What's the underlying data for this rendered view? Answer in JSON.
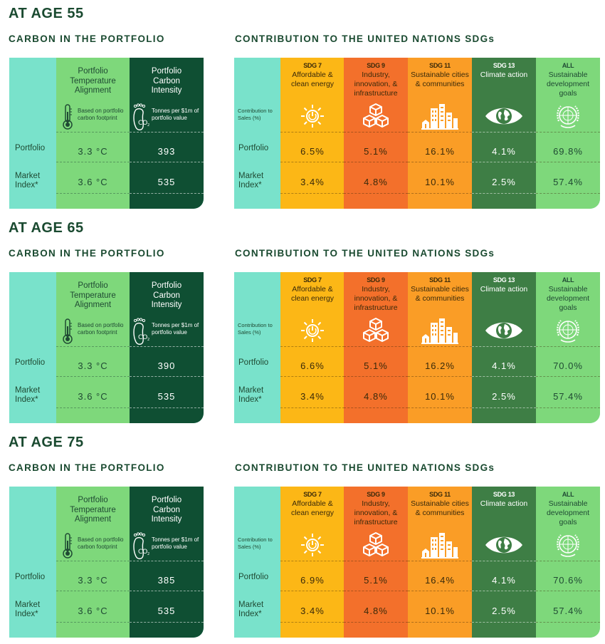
{
  "sections": [
    {
      "age_title": "AT AGE 55",
      "carbon": {
        "title": "CARBON IN THE PORTFOLIO",
        "temp_header": "Portfolio Temperature Alignment",
        "temp_sub": "Based on portfolio carbon footprint",
        "int_header": "Portfolio Carbon Intensity",
        "int_sub": "Tonnes per $1m of portfolio value",
        "portfolio_label": "Portfolio",
        "market_label": "Market Index*",
        "portfolio_temp": "3.3 °C",
        "portfolio_int": "393",
        "market_temp": "3.6 °C",
        "market_int": "535"
      },
      "sdg": {
        "title": "CONTRIBUTION TO THE UNITED NATIONS SDGs",
        "contrib_label": "Contribution to Sales (%)",
        "portfolio_label": "Portfolio",
        "market_label": "Market Index*",
        "columns": [
          {
            "code": "SDG 7",
            "name": "Affordable & clean energy",
            "portfolio": "6.5%",
            "market": "3.4%"
          },
          {
            "code": "SDG 9",
            "name": "Industry, innovation, & infrastructure",
            "portfolio": "5.1%",
            "market": "4.8%"
          },
          {
            "code": "SDG 11",
            "name": "Sustainable cities & communities",
            "portfolio": "16.1%",
            "market": "10.1%"
          },
          {
            "code": "SDG 13",
            "name": "Climate action",
            "portfolio": "4.1%",
            "market": "2.5%"
          },
          {
            "code": "ALL",
            "name": "Sustainable development goals",
            "portfolio": "69.8%",
            "market": "57.4%"
          }
        ]
      }
    },
    {
      "age_title": "AT AGE 65",
      "carbon": {
        "title": "CARBON IN THE PORTFOLIO",
        "temp_header": "Portfolio Temperature Alignment",
        "temp_sub": "Based on portfolio carbon footprint",
        "int_header": "Portfolio Carbon Intensity",
        "int_sub": "Tonnes per $1m of portfolio value",
        "portfolio_label": "Portfolio",
        "market_label": "Market Index*",
        "portfolio_temp": "3.3 °C",
        "portfolio_int": "390",
        "market_temp": "3.6 °C",
        "market_int": "535"
      },
      "sdg": {
        "title": "CONTRIBUTION TO THE UNITED NATIONS SDGs",
        "contrib_label": "Contribution to Sales (%)",
        "portfolio_label": "Portfolio",
        "market_label": "Market Index*",
        "columns": [
          {
            "code": "SDG 7",
            "name": "Affordable & clean energy",
            "portfolio": "6.6%",
            "market": "3.4%"
          },
          {
            "code": "SDG 9",
            "name": "Industry, innovation, & infrastructure",
            "portfolio": "5.1%",
            "market": "4.8%"
          },
          {
            "code": "SDG 11",
            "name": "Sustainable cities & communities",
            "portfolio": "16.2%",
            "market": "10.1%"
          },
          {
            "code": "SDG 13",
            "name": "Climate action",
            "portfolio": "4.1%",
            "market": "2.5%"
          },
          {
            "code": "ALL",
            "name": "Sustainable development goals",
            "portfolio": "70.0%",
            "market": "57.4%"
          }
        ]
      }
    },
    {
      "age_title": "AT AGE 75",
      "carbon": {
        "title": "CARBON IN THE PORTFOLIO",
        "temp_header": "Portfolio Temperature Alignment",
        "temp_sub": "Based on portfolio carbon footprint",
        "int_header": "Portfolio Carbon Intensity",
        "int_sub": "Tonnes per $1m of portfolio value",
        "portfolio_label": "Portfolio",
        "market_label": "Market Index*",
        "portfolio_temp": "3.3 °C",
        "portfolio_int": "385",
        "market_temp": "3.6 °C",
        "market_int": "535"
      },
      "sdg": {
        "title": "CONTRIBUTION TO THE UNITED NATIONS SDGs",
        "contrib_label": "Contribution to Sales (%)",
        "portfolio_label": "Portfolio",
        "market_label": "Market Index*",
        "columns": [
          {
            "code": "SDG 7",
            "name": "Affordable & clean energy",
            "portfolio": "6.9%",
            "market": "3.4%"
          },
          {
            "code": "SDG 9",
            "name": "Industry, innovation, & infrastructure",
            "portfolio": "5.1%",
            "market": "4.8%"
          },
          {
            "code": "SDG 11",
            "name": "Sustainable cities & communities",
            "portfolio": "16.4%",
            "market": "10.1%"
          },
          {
            "code": "SDG 13",
            "name": "Climate action",
            "portfolio": "4.1%",
            "market": "2.5%"
          },
          {
            "code": "ALL",
            "name": "Sustainable development goals",
            "portfolio": "70.6%",
            "market": "57.4%"
          }
        ]
      }
    }
  ],
  "colors": {
    "label_column": "#79e2cb",
    "light_green": "#7ed87b",
    "dark_green": "#0f4f33",
    "sdg7": "#fcb716",
    "sdg9": "#f3702b",
    "sdg11": "#fa9d26",
    "sdg13": "#3e7e45",
    "all": "#7ed87b"
  },
  "icons": [
    "thermometer-icon",
    "footprint-co2-icon",
    "sun-icon",
    "cubes-icon",
    "city-icon",
    "eye-globe-icon",
    "un-emblem-icon"
  ]
}
